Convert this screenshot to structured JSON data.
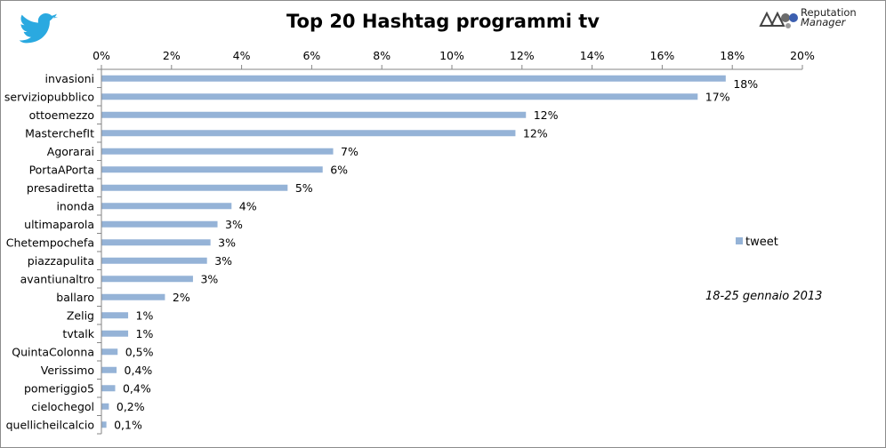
{
  "brand": {
    "line1": "Reputation",
    "line2": "Manager"
  },
  "legend": {
    "label": "tweet"
  },
  "annotation": "18-25 gennaio 2013",
  "colors": {
    "bar": "#95b3d7",
    "axis": "#868686",
    "twitter": "#2aa9e0"
  },
  "icons": {
    "corner": "twitter-bird-icon",
    "brand": "reputation-manager-logo-icon"
  },
  "chart_data": {
    "type": "bar",
    "orientation": "horizontal",
    "title": "Top 20 Hashtag programmi tv",
    "xlim": [
      0,
      20
    ],
    "xticks": [
      "0%",
      "2%",
      "4%",
      "6%",
      "8%",
      "10%",
      "12%",
      "14%",
      "16%",
      "18%",
      "20%"
    ],
    "grid": false,
    "legend_position": "right",
    "categories": [
      "invasioni",
      "serviziopubblico",
      "ottoemezzo",
      "MasterchefIt",
      "Agorarai",
      "PortaAPorta",
      "presadiretta",
      "inonda",
      "ultimaparola",
      "Chetempochefa",
      "piazzapulita",
      "avantiunaltro",
      "ballaro",
      "Zelig",
      "tvtalk",
      "QuintaColonna",
      "Verissimo",
      "pomeriggio5",
      "cielochegol",
      "quellicheilcalcio"
    ],
    "series": [
      {
        "name": "tweet",
        "values": [
          17.8,
          17.0,
          12.1,
          11.8,
          6.6,
          6.3,
          5.3,
          3.7,
          3.3,
          3.1,
          3.0,
          2.6,
          1.8,
          0.75,
          0.75,
          0.45,
          0.42,
          0.38,
          0.2,
          0.13
        ],
        "labels": [
          "18%",
          "17%",
          "12%",
          "12%",
          "7%",
          "6%",
          "5%",
          "4%",
          "3%",
          "3%",
          "3%",
          "3%",
          "2%",
          "1%",
          "1%",
          "0,5%",
          "0,4%",
          "0,4%",
          "0,2%",
          "0,1%"
        ]
      }
    ]
  }
}
